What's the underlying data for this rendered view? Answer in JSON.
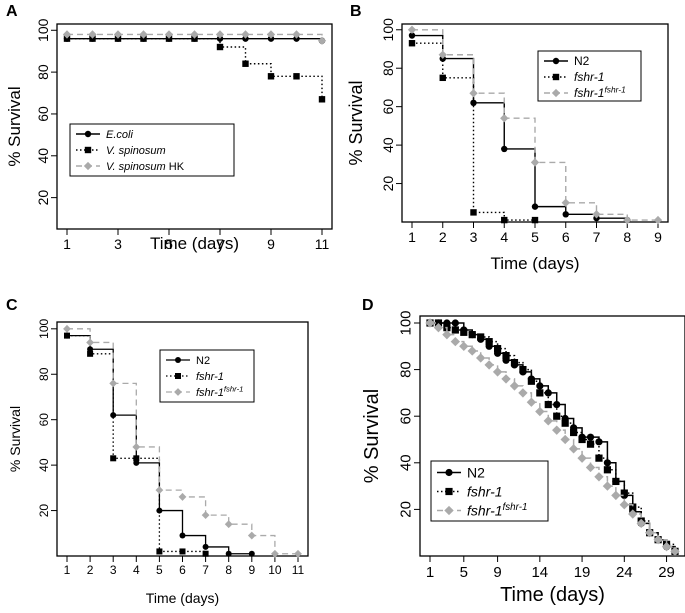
{
  "chart_data": [
    {
      "panel": "A",
      "type": "line",
      "xlabel": "Time (days)",
      "ylabel": "% Survival",
      "xticks": [
        1,
        3,
        5,
        7,
        9,
        11
      ],
      "yticks": [
        20,
        40,
        60,
        80,
        100
      ],
      "xlim": [
        1,
        11
      ],
      "ylim": [
        5,
        103
      ],
      "series": [
        {
          "name": "E.coli",
          "italic": true,
          "style": "solid",
          "color": "#000000",
          "marker": "circle",
          "x": [
            1,
            2,
            3,
            4,
            5,
            6,
            7,
            8,
            9,
            10,
            11
          ],
          "y": [
            96,
            96,
            96,
            96,
            96,
            96,
            96,
            96,
            96,
            96,
            95
          ]
        },
        {
          "name": "V. spinosum",
          "italic": true,
          "style": "dotted",
          "color": "#000000",
          "marker": "square",
          "x": [
            1,
            2,
            3,
            4,
            5,
            6,
            7,
            8,
            9,
            10,
            11
          ],
          "y": [
            96,
            96,
            96,
            96,
            96,
            96,
            92,
            84,
            78,
            78,
            67
          ]
        },
        {
          "name": "V. spinosum HK",
          "italic_part": "V. spinosum",
          "plain_part": " HK",
          "style": "dashed",
          "color": "#aaaaaa",
          "marker": "diamond",
          "x": [
            1,
            2,
            3,
            4,
            5,
            6,
            7,
            8,
            9,
            10,
            11
          ],
          "y": [
            98,
            98,
            98,
            98,
            98,
            98,
            98,
            98,
            98,
            98,
            95
          ]
        }
      ]
    },
    {
      "panel": "B",
      "type": "line",
      "xlabel": "Time (days)",
      "ylabel": "% Survival",
      "xticks": [
        1,
        2,
        3,
        4,
        5,
        6,
        7,
        8,
        9
      ],
      "yticks": [
        20,
        40,
        60,
        80,
        100
      ],
      "xlim": [
        1,
        9
      ],
      "ylim": [
        0,
        103
      ],
      "series": [
        {
          "name": "N2",
          "style": "solid",
          "color": "#000000",
          "marker": "circle",
          "x": [
            1,
            2,
            3,
            4,
            5,
            6,
            7,
            8
          ],
          "y": [
            97,
            85,
            62,
            38,
            8,
            4,
            2,
            1
          ]
        },
        {
          "name": "fshr-1",
          "italic": true,
          "style": "dotted",
          "color": "#000000",
          "marker": "square",
          "x": [
            1,
            2,
            3,
            4,
            5
          ],
          "y": [
            93,
            75,
            5,
            1,
            1
          ]
        },
        {
          "name": "fshr-1",
          "sup": "fshr-1",
          "italic": true,
          "style": "dashed",
          "color": "#aaaaaa",
          "marker": "diamond",
          "x": [
            1,
            2,
            3,
            4,
            5,
            6,
            7,
            8,
            9
          ],
          "y": [
            100,
            87,
            67,
            54,
            31,
            10,
            4,
            1,
            1
          ]
        }
      ]
    },
    {
      "panel": "C",
      "type": "line",
      "xlabel": "Time (days)",
      "ylabel": "% Survival",
      "xticks": [
        1,
        2,
        3,
        4,
        5,
        6,
        7,
        8,
        9,
        10,
        11
      ],
      "yticks": [
        20,
        40,
        60,
        80,
        100
      ],
      "xlim": [
        1,
        11
      ],
      "ylim": [
        0,
        103
      ],
      "series": [
        {
          "name": "N2",
          "style": "solid",
          "color": "#000000",
          "marker": "circle",
          "x": [
            1,
            2,
            3,
            4,
            5,
            6,
            7,
            8,
            9
          ],
          "y": [
            97,
            91,
            62,
            41,
            20,
            9,
            4,
            1,
            1
          ]
        },
        {
          "name": "fshr-1",
          "italic": true,
          "style": "dotted",
          "color": "#000000",
          "marker": "square",
          "x": [
            1,
            2,
            3,
            4,
            5,
            6,
            7
          ],
          "y": [
            97,
            89,
            43,
            43,
            2,
            2,
            1
          ]
        },
        {
          "name": "fshr-1",
          "sup": "fshr-1",
          "italic": true,
          "style": "dashed",
          "color": "#aaaaaa",
          "marker": "diamond",
          "x": [
            1,
            2,
            3,
            4,
            5,
            6,
            7,
            8,
            9,
            10,
            11
          ],
          "y": [
            100,
            94,
            76,
            48,
            29,
            26,
            18,
            14,
            9,
            1,
            1
          ]
        }
      ]
    },
    {
      "panel": "D",
      "type": "line",
      "xlabel": "Time (days)",
      "ylabel": "% Survival",
      "xticks": [
        1,
        5,
        9,
        14,
        19,
        24,
        29
      ],
      "yticks": [
        20,
        40,
        60,
        80,
        100
      ],
      "xlim": [
        1,
        30
      ],
      "ylim": [
        0,
        103
      ],
      "series": [
        {
          "name": "N2",
          "style": "solid",
          "color": "#000000",
          "marker": "circle",
          "x": [
            1,
            2,
            3,
            4,
            5,
            6,
            7,
            8,
            9,
            10,
            11,
            12,
            13,
            14,
            15,
            16,
            17,
            18,
            19,
            20,
            21,
            22,
            23,
            24,
            25,
            26,
            27,
            28,
            29,
            30
          ],
          "y": [
            100,
            100,
            100,
            100,
            97,
            95,
            93,
            90,
            87,
            84,
            82,
            79,
            76,
            73,
            70,
            65,
            59,
            55,
            51,
            51,
            49,
            40,
            32,
            26,
            19,
            14,
            10,
            7,
            4,
            2
          ]
        },
        {
          "name": "fshr-1",
          "italic": true,
          "style": "dotted",
          "color": "#000000",
          "marker": "square",
          "x": [
            1,
            2,
            3,
            4,
            5,
            6,
            7,
            8,
            9,
            10,
            11,
            12,
            13,
            14,
            15,
            16,
            17,
            18,
            19,
            20,
            21,
            22,
            23,
            24,
            25,
            26,
            27,
            28,
            29,
            30
          ],
          "y": [
            100,
            100,
            98,
            97,
            96,
            95,
            94,
            92,
            89,
            86,
            83,
            80,
            75,
            70,
            65,
            60,
            57,
            53,
            50,
            48,
            42,
            37,
            32,
            27,
            21,
            15,
            10,
            7,
            5,
            2
          ]
        },
        {
          "name": "fshr-1",
          "sup": "fshr-1",
          "italic": true,
          "style": "dashed",
          "color": "#aaaaaa",
          "marker": "diamond",
          "x": [
            1,
            2,
            3,
            4,
            5,
            6,
            7,
            8,
            9,
            10,
            11,
            12,
            13,
            14,
            15,
            16,
            17,
            18,
            19,
            20,
            21,
            22,
            23,
            24,
            25,
            26,
            27,
            28,
            29,
            30
          ],
          "y": [
            100,
            98,
            95,
            92,
            90,
            88,
            85,
            82,
            79,
            76,
            73,
            70,
            66,
            62,
            58,
            54,
            50,
            46,
            42,
            38,
            34,
            30,
            26,
            22,
            18,
            14,
            10,
            7,
            4,
            2
          ]
        }
      ]
    }
  ]
}
